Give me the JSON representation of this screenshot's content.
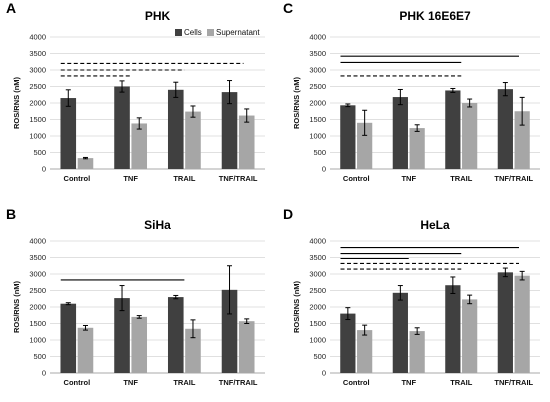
{
  "legend": {
    "items": [
      {
        "name": "Cells",
        "color": "#404040"
      },
      {
        "name": "Supernatant",
        "color": "#a6a6a6"
      }
    ]
  },
  "chart_data": [
    {
      "letter": "A",
      "type": "bar",
      "title": "PHK",
      "ylabel": "ROS/RNS (nM)",
      "categories": [
        "Control",
        "TNF",
        "TRAIL",
        "TNF/TRAIL"
      ],
      "ylim": [
        0,
        4000
      ],
      "yticks": [
        0,
        500,
        1000,
        1500,
        2000,
        2500,
        3000,
        3500,
        4000
      ],
      "grid": true,
      "legend": "top-right",
      "series": [
        {
          "name": "Cells",
          "color": "#404040",
          "values": [
            2150,
            2500,
            2400,
            2330
          ],
          "errors": [
            250,
            170,
            230,
            350
          ]
        },
        {
          "name": "Supernatant",
          "color": "#a6a6a6",
          "values": [
            330,
            1380,
            1740,
            1620
          ],
          "errors": [
            20,
            170,
            170,
            200
          ]
        }
      ],
      "significance": [
        {
          "from": 0,
          "to": 3,
          "y": 3200,
          "style": "dashed"
        },
        {
          "from": 0,
          "to": 2,
          "y": 3000,
          "style": "dashed"
        },
        {
          "from": 0,
          "to": 1,
          "y": 2820,
          "style": "dashed"
        }
      ]
    },
    {
      "letter": "C",
      "type": "bar",
      "title": "PHK 16E6E7",
      "ylabel": "ROS/RNS (nM)",
      "categories": [
        "Control",
        "TNF",
        "TRAIL",
        "TNF/TRAIL"
      ],
      "ylim": [
        0,
        4000
      ],
      "yticks": [
        0,
        500,
        1000,
        1500,
        2000,
        2500,
        3000,
        3500,
        4000
      ],
      "grid": true,
      "series": [
        {
          "name": "Cells",
          "color": "#404040",
          "values": [
            1930,
            2180,
            2380,
            2420
          ],
          "errors": [
            40,
            230,
            60,
            200
          ]
        },
        {
          "name": "Supernatant",
          "color": "#a6a6a6",
          "values": [
            1400,
            1240,
            2000,
            1750
          ],
          "errors": [
            380,
            100,
            120,
            420
          ]
        }
      ],
      "significance": [
        {
          "from": 0,
          "to": 3,
          "y": 3420,
          "style": "solid"
        },
        {
          "from": 0,
          "to": 2,
          "y": 3230,
          "style": "solid"
        },
        {
          "from": 0,
          "to": 2,
          "y": 2820,
          "style": "dashed"
        }
      ]
    },
    {
      "letter": "B",
      "type": "bar",
      "title": "SiHa",
      "ylabel": "ROS/RNS (nM)",
      "categories": [
        "Control",
        "TNF",
        "TRAIL",
        "TNF/TRAIL"
      ],
      "ylim": [
        0,
        4000
      ],
      "yticks": [
        0,
        500,
        1000,
        1500,
        2000,
        2500,
        3000,
        3500,
        4000
      ],
      "grid": true,
      "series": [
        {
          "name": "Cells",
          "color": "#404040",
          "values": [
            2100,
            2270,
            2300,
            2520
          ],
          "errors": [
            30,
            380,
            50,
            730
          ]
        },
        {
          "name": "Supernatant",
          "color": "#a6a6a6",
          "values": [
            1370,
            1700,
            1340,
            1570
          ],
          "errors": [
            70,
            40,
            270,
            70
          ]
        }
      ],
      "significance": [
        {
          "from": 0,
          "to": 2,
          "y": 2820,
          "style": "solid"
        }
      ]
    },
    {
      "letter": "D",
      "type": "bar",
      "title": "HeLa",
      "ylabel": "ROS/RNS (nM)",
      "categories": [
        "Control",
        "TNF",
        "TRAIL",
        "TNF/TRAIL"
      ],
      "ylim": [
        0,
        4000
      ],
      "yticks": [
        0,
        500,
        1000,
        1500,
        2000,
        2500,
        3000,
        3500,
        4000
      ],
      "grid": true,
      "series": [
        {
          "name": "Cells",
          "color": "#404040",
          "values": [
            1800,
            2430,
            2660,
            3050
          ],
          "errors": [
            180,
            220,
            250,
            130
          ]
        },
        {
          "name": "Supernatant",
          "color": "#a6a6a6",
          "values": [
            1300,
            1270,
            2230,
            2950
          ],
          "errors": [
            150,
            100,
            130,
            130
          ]
        }
      ],
      "significance": [
        {
          "from": 0,
          "to": 3,
          "y": 3800,
          "style": "solid"
        },
        {
          "from": 0,
          "to": 2,
          "y": 3620,
          "style": "solid"
        },
        {
          "from": 0,
          "to": 1,
          "y": 3470,
          "style": "solid"
        },
        {
          "from": 0,
          "to": 3,
          "y": 3320,
          "style": "dashed"
        },
        {
          "from": 0,
          "to": 2,
          "y": 3150,
          "style": "dashed"
        }
      ]
    }
  ]
}
